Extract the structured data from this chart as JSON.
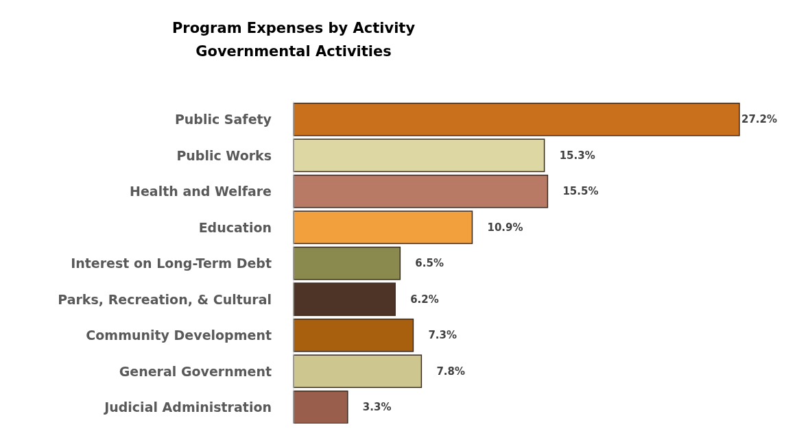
{
  "chart_data": {
    "type": "bar",
    "orientation": "horizontal",
    "title": "Program Expenses by Activity\nGovernmental Activities",
    "categories": [
      "Public Safety",
      "Public Works",
      "Health and Welfare",
      "Education",
      "Interest on Long-Term Debt",
      "Parks, Recreation, & Cultural",
      "Community Development",
      "General Government",
      "Judicial Administration"
    ],
    "values": [
      27.2,
      15.3,
      15.5,
      10.9,
      6.5,
      6.2,
      7.3,
      7.8,
      3.3
    ],
    "value_labels": [
      "27.2%",
      "15.3%",
      "15.5%",
      "10.9%",
      "6.5%",
      "6.2%",
      "7.3%",
      "7.8%",
      "3.3%"
    ],
    "colors": [
      "#c8701c",
      "#ddd7a4",
      "#b87a64",
      "#f2a03e",
      "#8a8a4e",
      "#4e3426",
      "#a8600f",
      "#cdc68e",
      "#9a5e4c"
    ]
  }
}
